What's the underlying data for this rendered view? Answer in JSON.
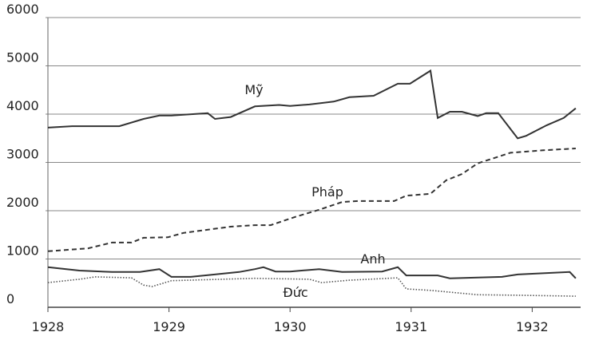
{
  "chart_data": {
    "type": "line",
    "xlim": [
      1928,
      1932.4
    ],
    "xticks": [
      1928,
      1929,
      1930,
      1931,
      1932
    ],
    "ylim": [
      0,
      6000
    ],
    "yticks": [
      0,
      1000,
      2000,
      3000,
      4000,
      5000,
      6000
    ],
    "grid": true,
    "series": [
      {
        "name": "Mỹ",
        "color": "#333333",
        "dash": "solid",
        "x": [
          1928.0,
          1928.2,
          1928.59,
          1928.79,
          1928.92,
          1929.02,
          1929.32,
          1929.38,
          1929.51,
          1929.71,
          1929.91,
          1930.0,
          1930.16,
          1930.36,
          1930.49,
          1930.69,
          1930.89,
          1930.99,
          1931.16,
          1931.22,
          1931.32,
          1931.42,
          1931.55,
          1931.62,
          1931.72,
          1931.88,
          1931.95,
          1932.12,
          1932.26,
          1932.36
        ],
        "values": [
          3720,
          3750,
          3750,
          3900,
          3970,
          3970,
          4020,
          3900,
          3940,
          4160,
          4190,
          4170,
          4200,
          4260,
          4350,
          4380,
          4630,
          4630,
          4900,
          3920,
          4050,
          4050,
          3960,
          4020,
          4020,
          3500,
          3550,
          3770,
          3920,
          4120
        ]
      },
      {
        "name": "Pháp",
        "color": "#333333",
        "dash": "dashed",
        "x": [
          1928.0,
          1928.33,
          1928.53,
          1928.69,
          1928.79,
          1928.99,
          1929.12,
          1929.51,
          1929.71,
          1929.84,
          1930.04,
          1930.24,
          1930.43,
          1930.56,
          1930.86,
          1930.96,
          1931.16,
          1931.29,
          1931.42,
          1931.55,
          1931.82,
          1932.08,
          1932.36
        ],
        "values": [
          1160,
          1220,
          1340,
          1340,
          1440,
          1450,
          1540,
          1670,
          1700,
          1700,
          1870,
          2020,
          2180,
          2200,
          2200,
          2310,
          2350,
          2630,
          2760,
          2980,
          3200,
          3250,
          3290
        ]
      },
      {
        "name": "Anh",
        "color": "#333333",
        "dash": "solid",
        "x": [
          1928.0,
          1928.26,
          1928.53,
          1928.76,
          1928.92,
          1929.02,
          1929.18,
          1929.58,
          1929.71,
          1929.78,
          1929.88,
          1930.0,
          1930.24,
          1930.43,
          1930.76,
          1930.89,
          1930.96,
          1931.22,
          1931.32,
          1931.75,
          1931.88,
          1932.31,
          1932.36
        ],
        "values": [
          830,
          760,
          730,
          730,
          790,
          630,
          630,
          730,
          790,
          830,
          740,
          740,
          790,
          730,
          740,
          830,
          660,
          660,
          600,
          630,
          680,
          730,
          600
        ]
      },
      {
        "name": "Đức",
        "color": "#555555",
        "dash": "dotted",
        "x": [
          1928.0,
          1928.26,
          1928.39,
          1928.69,
          1928.79,
          1928.86,
          1929.02,
          1929.71,
          1930.16,
          1930.26,
          1930.49,
          1930.89,
          1930.96,
          1931.16,
          1931.55,
          1931.88,
          1932.36
        ],
        "values": [
          510,
          580,
          630,
          610,
          460,
          430,
          550,
          600,
          580,
          510,
          560,
          610,
          380,
          350,
          260,
          250,
          230
        ]
      }
    ]
  }
}
